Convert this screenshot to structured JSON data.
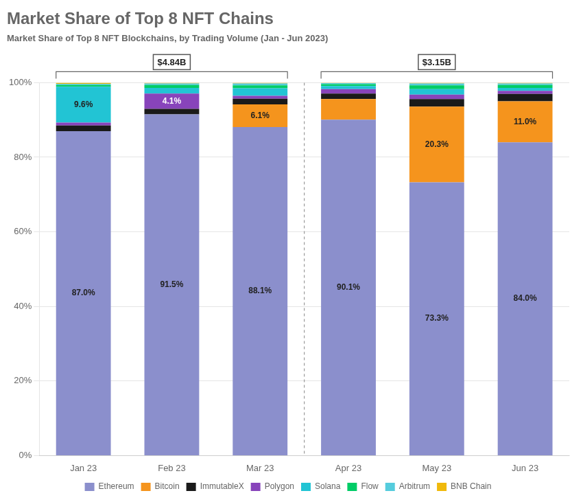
{
  "chart_data": {
    "type": "bar",
    "title": "Market Share of Top 8 NFT Chains",
    "subtitle": "Market Share of Top 8 NFT Blockchains, by Trading Volume (Jan - Jun 2023)",
    "categories": [
      "Jan 23",
      "Feb 23",
      "Mar 23",
      "Apr 23",
      "May 23",
      "Jun 23"
    ],
    "series": [
      {
        "name": "Ethereum",
        "color": "#8B8FCC",
        "values": [
          87.0,
          91.5,
          88.1,
          90.1,
          73.3,
          84.0
        ],
        "value_labels": [
          "87.0%",
          "91.5%",
          "88.1%",
          "90.1%",
          "73.3%",
          "84.0%"
        ]
      },
      {
        "name": "Bitcoin",
        "color": "#F5941D",
        "values": [
          0.0,
          0.0,
          6.1,
          5.5,
          20.3,
          11.0
        ],
        "value_labels": [
          null,
          null,
          "6.1%",
          null,
          "20.3%",
          "11.0%"
        ]
      },
      {
        "name": "ImmutableX",
        "color": "#1A1A1A",
        "values": [
          1.5,
          1.5,
          1.5,
          1.5,
          2.0,
          2.0
        ]
      },
      {
        "name": "Polygon",
        "color": "#8844BB",
        "values": [
          0.8,
          4.1,
          0.8,
          1.2,
          1.2,
          0.8
        ],
        "value_labels": [
          null,
          "4.1%",
          null,
          null,
          null,
          null
        ]
      },
      {
        "name": "Solana",
        "color": "#22C4D4",
        "values": [
          9.6,
          1.5,
          2.0,
          0.8,
          1.5,
          0.8
        ],
        "value_labels": [
          "9.6%",
          null,
          null,
          null,
          null,
          null
        ]
      },
      {
        "name": "Flow",
        "color": "#00CC66",
        "values": [
          0.5,
          0.8,
          0.8,
          0.5,
          1.0,
          0.8
        ]
      },
      {
        "name": "Arbitrum",
        "color": "#55CCDD",
        "values": [
          0.3,
          0.4,
          0.5,
          0.3,
          0.5,
          0.4
        ]
      },
      {
        "name": "BNB Chain",
        "color": "#F0B90B",
        "values": [
          0.3,
          0.2,
          0.2,
          0.1,
          0.2,
          0.2
        ]
      }
    ],
    "stacked": true,
    "ylim": [
      0,
      100
    ],
    "yticks": [
      {
        "value": 0,
        "label": "0%"
      },
      {
        "value": 20,
        "label": "20%"
      },
      {
        "value": 40,
        "label": "40%"
      },
      {
        "value": 60,
        "label": "60%"
      },
      {
        "value": 80,
        "label": "80%"
      },
      {
        "value": 100,
        "label": "100%"
      }
    ],
    "grid": true,
    "legend": "bottom",
    "annotations": [
      {
        "text": "$4.84B",
        "from": "Jan 23",
        "to": "Mar 23"
      },
      {
        "text": "$3.15B",
        "from": "Apr 23",
        "to": "Jun 23"
      }
    ]
  }
}
